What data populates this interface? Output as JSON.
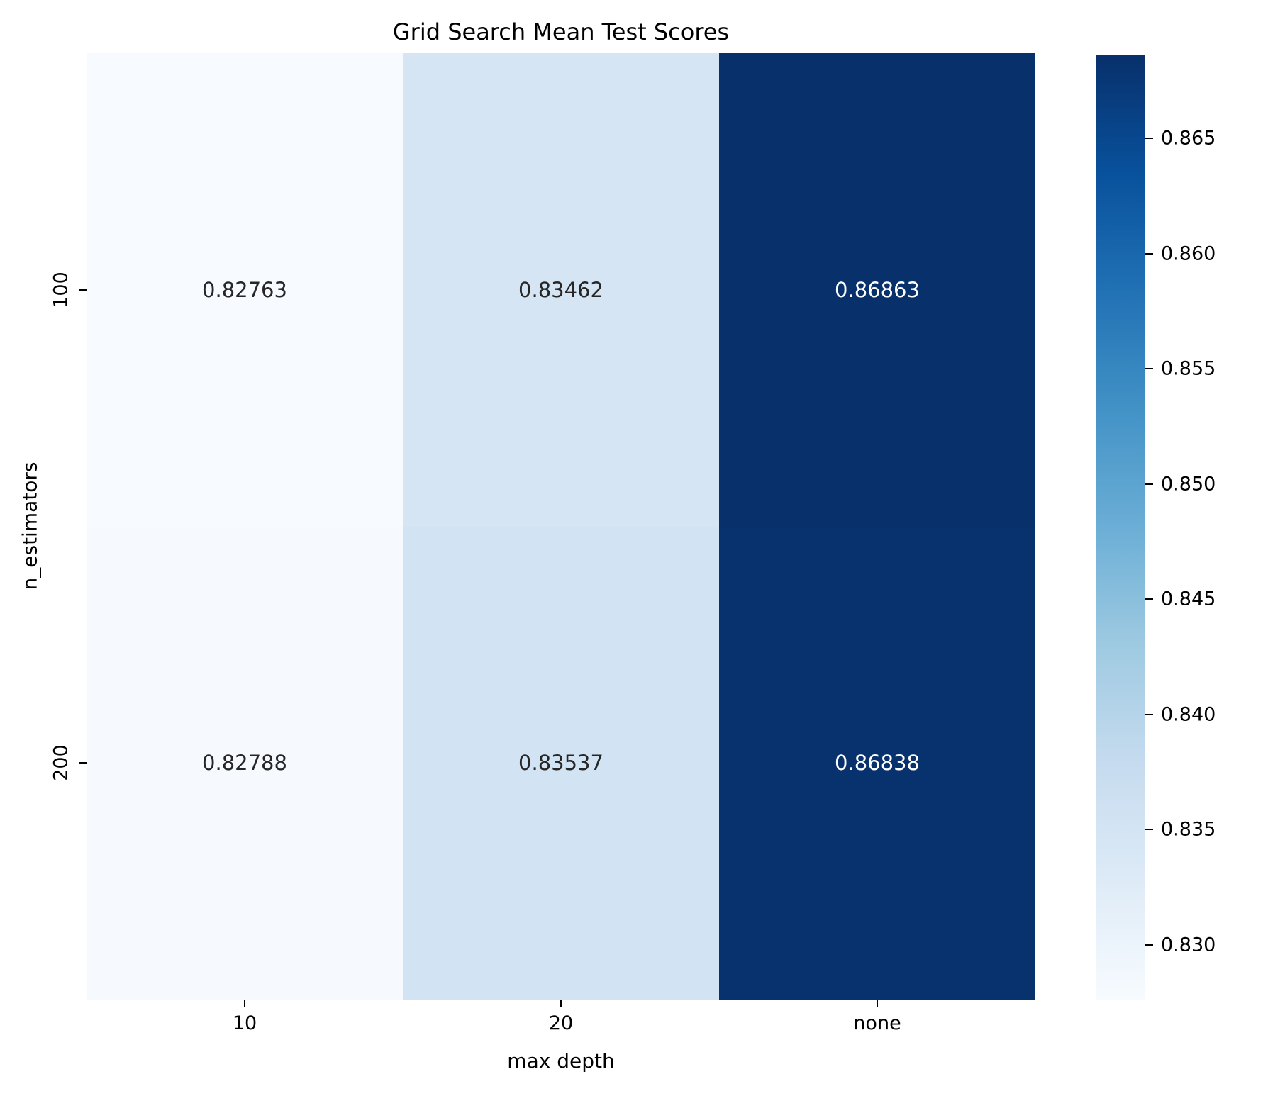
{
  "chart_data": {
    "type": "heatmap",
    "title": "Grid Search Mean Test Scores",
    "xlabel": "max depth",
    "ylabel": "n_estimators",
    "x_categories": [
      "10",
      "20",
      "none"
    ],
    "y_categories": [
      "100",
      "200"
    ],
    "values": [
      [
        0.82763,
        0.83462,
        0.86863
      ],
      [
        0.82788,
        0.83537,
        0.86838
      ]
    ],
    "value_labels": [
      [
        "0.82763",
        "0.83462",
        "0.86863"
      ],
      [
        "0.82788",
        "0.83537",
        "0.86838"
      ]
    ],
    "vmin": 0.82763,
    "vmax": 0.86863,
    "colormap": "Blues",
    "colormap_anchors": [
      "#f7fbff",
      "#deebf7",
      "#c6dbef",
      "#9ecae1",
      "#6baed6",
      "#4292c6",
      "#2171b5",
      "#08519c",
      "#08306b"
    ],
    "annotation_text_dark": "#262626",
    "annotation_text_light": "#ffffff",
    "colorbar": {
      "position": "right",
      "tick_labels": [
        "0.865",
        "0.860",
        "0.855",
        "0.850",
        "0.845",
        "0.840",
        "0.835",
        "0.830"
      ],
      "tick_values": [
        0.865,
        0.86,
        0.855,
        0.85,
        0.845,
        0.84,
        0.835,
        0.83
      ]
    },
    "grid": false,
    "legend": false
  }
}
